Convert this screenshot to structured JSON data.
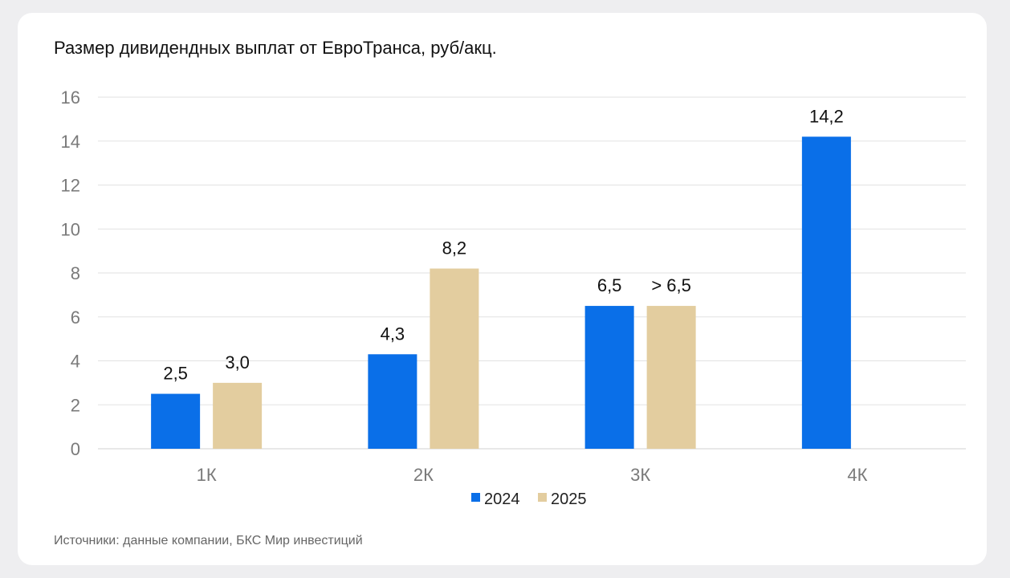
{
  "chart_data": {
    "type": "bar",
    "title": "Размер дивидендных выплат от ЕвроТранса, руб/акц.",
    "categories": [
      "1К",
      "2К",
      "3К",
      "4К"
    ],
    "series": [
      {
        "name": "2024",
        "color": "#0a6fe8",
        "values": [
          2.5,
          4.3,
          6.5,
          14.2
        ],
        "labels": [
          "2,5",
          "4,3",
          "6,5",
          "14,2"
        ]
      },
      {
        "name": "2025",
        "color": "#e3cd9f",
        "values": [
          3.0,
          8.2,
          6.5,
          null
        ],
        "labels": [
          "3,0",
          "8,2",
          "> 6,5",
          null
        ]
      }
    ],
    "ylim": [
      0,
      16
    ],
    "yticks": [
      0,
      2,
      4,
      6,
      8,
      10,
      12,
      14,
      16
    ],
    "grid": true,
    "legend": "bottom-center",
    "xlabel": "",
    "ylabel": ""
  },
  "source": "Источники: данные компании, БКС Мир инвестиций"
}
